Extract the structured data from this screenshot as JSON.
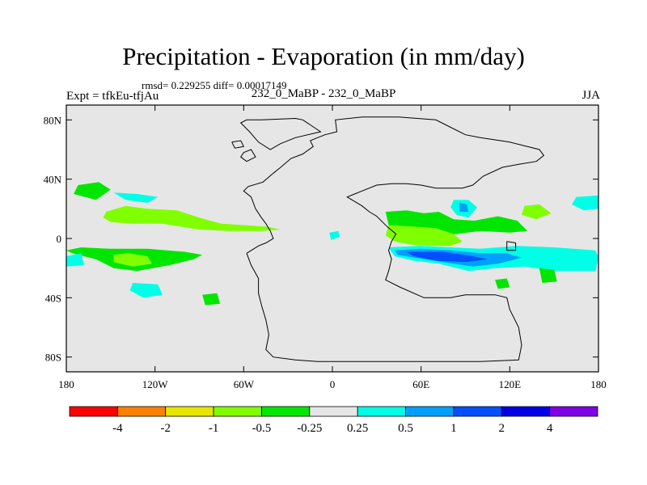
{
  "title": "Precipitation - Evaporation (in mm/day)",
  "stats": "rmsd= 0.229255 diff= 0.00017149",
  "left_label": "Expt = tfkEu-tfjAu",
  "center_label": "232_0_MaBP - 232_0_MaBP",
  "season": "JJA",
  "colors": {
    "background": "#e6e6e6",
    "outline": "#000000"
  },
  "chart_data": {
    "type": "heatmap",
    "projection": "cylindrical equidistant",
    "xlim": [
      -180,
      180
    ],
    "ylim": [
      -90,
      90
    ],
    "x_ticks": [
      {
        "value": -180,
        "label": "180"
      },
      {
        "value": -120,
        "label": "120W"
      },
      {
        "value": -60,
        "label": "60W"
      },
      {
        "value": 0,
        "label": "0"
      },
      {
        "value": 60,
        "label": "60E"
      },
      {
        "value": 120,
        "label": "120E"
      },
      {
        "value": 180,
        "label": "180"
      }
    ],
    "y_ticks": [
      {
        "value": 80,
        "label": "80N"
      },
      {
        "value": 40,
        "label": "40N"
      },
      {
        "value": 0,
        "label": "0"
      },
      {
        "value": -40,
        "label": "40S"
      },
      {
        "value": -80,
        "label": "80S"
      }
    ],
    "colorbar": {
      "colors": [
        "#ff0000",
        "#ff8000",
        "#e6e600",
        "#80ff00",
        "#00e600",
        "#e6e6e6",
        "#00ffe6",
        "#00a0ff",
        "#0050ff",
        "#0000e6",
        "#8000e6"
      ],
      "labels": [
        "-4",
        "-2",
        "-1",
        "-0.5",
        "-0.25",
        "0.25",
        "0.5",
        "1",
        "2",
        "4"
      ]
    },
    "regions": [
      {
        "level": "-0.5",
        "color": "#80ff00",
        "points": [
          [
            -153,
            18
          ],
          [
            -140,
            22
          ],
          [
            -125,
            20
          ],
          [
            -105,
            19
          ],
          [
            -90,
            14
          ],
          [
            -75,
            10
          ],
          [
            -60,
            9
          ],
          [
            -45,
            8
          ],
          [
            -35,
            6
          ],
          [
            -48,
            5
          ],
          [
            -70,
            5
          ],
          [
            -90,
            6
          ],
          [
            -115,
            10
          ],
          [
            -135,
            10
          ],
          [
            -150,
            11
          ],
          [
            -155,
            14
          ]
        ]
      },
      {
        "level": "-0.25",
        "color": "#00e600",
        "points": [
          [
            -172,
            36
          ],
          [
            -158,
            38
          ],
          [
            -150,
            33
          ],
          [
            -160,
            26
          ],
          [
            -175,
            30
          ]
        ]
      },
      {
        "level": "0.25",
        "color": "#00ffe6",
        "points": [
          [
            -148,
            31
          ],
          [
            -132,
            30
          ],
          [
            -118,
            28
          ],
          [
            -125,
            24
          ],
          [
            -140,
            26
          ]
        ]
      },
      {
        "level": "-0.25",
        "color": "#00e600",
        "points": [
          [
            -176,
            -10
          ],
          [
            -160,
            -14
          ],
          [
            -148,
            -20
          ],
          [
            -132,
            -22
          ],
          [
            -110,
            -18
          ],
          [
            -94,
            -14
          ],
          [
            -88,
            -11
          ],
          [
            -100,
            -9
          ],
          [
            -125,
            -7
          ],
          [
            -150,
            -7
          ],
          [
            -170,
            -6
          ],
          [
            -180,
            -8
          ]
        ]
      },
      {
        "level": "0.25",
        "color": "#00ffe6",
        "points": [
          [
            -180,
            -12
          ],
          [
            -170,
            -10
          ],
          [
            -168,
            -18
          ],
          [
            -180,
            -19
          ]
        ]
      },
      {
        "level": "-0.5",
        "color": "#80ff00",
        "points": [
          [
            -148,
            -11
          ],
          [
            -138,
            -10
          ],
          [
            -125,
            -12
          ],
          [
            -122,
            -17
          ],
          [
            -135,
            -19
          ],
          [
            -148,
            -16
          ]
        ]
      },
      {
        "level": "0.25",
        "color": "#00ffe6",
        "points": [
          [
            -135,
            -30
          ],
          [
            -118,
            -31
          ],
          [
            -115,
            -38
          ],
          [
            -128,
            -40
          ],
          [
            -137,
            -35
          ]
        ]
      },
      {
        "level": "-0.25",
        "color": "#00e600",
        "points": [
          [
            -88,
            -38
          ],
          [
            -78,
            -37
          ],
          [
            -76,
            -44
          ],
          [
            -86,
            -45
          ]
        ]
      },
      {
        "level": "0.25",
        "color": "#00ffe6",
        "points": [
          [
            -2,
            4
          ],
          [
            4,
            5
          ],
          [
            5,
            1
          ],
          [
            -1,
            -1
          ]
        ]
      },
      {
        "level": "-0.25",
        "color": "#00e600",
        "points": [
          [
            36,
            18
          ],
          [
            50,
            19
          ],
          [
            62,
            17
          ],
          [
            72,
            18
          ],
          [
            82,
            13
          ],
          [
            96,
            12
          ],
          [
            112,
            15
          ],
          [
            125,
            12
          ],
          [
            132,
            5
          ],
          [
            120,
            4
          ],
          [
            100,
            5
          ],
          [
            84,
            3
          ],
          [
            66,
            2
          ],
          [
            50,
            5
          ],
          [
            38,
            9
          ]
        ]
      },
      {
        "level": "-0.5",
        "color": "#80ff00",
        "points": [
          [
            38,
            9
          ],
          [
            55,
            8
          ],
          [
            70,
            7
          ],
          [
            82,
            3
          ],
          [
            88,
            -2
          ],
          [
            80,
            -5
          ],
          [
            65,
            -5
          ],
          [
            52,
            -4
          ],
          [
            42,
            -2
          ],
          [
            36,
            2
          ]
        ]
      },
      {
        "level": "0.25",
        "color": "#00ffe6",
        "points": [
          [
            38,
            -6
          ],
          [
            60,
            -5
          ],
          [
            80,
            -6
          ],
          [
            100,
            -7
          ],
          [
            125,
            -5
          ],
          [
            150,
            -6
          ],
          [
            178,
            -8
          ],
          [
            180,
            -13
          ],
          [
            178,
            -22
          ],
          [
            150,
            -22
          ],
          [
            130,
            -19
          ],
          [
            110,
            -20
          ],
          [
            92,
            -22
          ],
          [
            72,
            -17
          ],
          [
            55,
            -15
          ],
          [
            42,
            -12
          ]
        ]
      },
      {
        "level": "0.5",
        "color": "#00a0ff",
        "points": [
          [
            42,
            -8
          ],
          [
            60,
            -7
          ],
          [
            80,
            -8
          ],
          [
            100,
            -10
          ],
          [
            118,
            -10
          ],
          [
            128,
            -13
          ],
          [
            112,
            -17
          ],
          [
            95,
            -19
          ],
          [
            75,
            -16
          ],
          [
            56,
            -13
          ],
          [
            44,
            -11
          ]
        ]
      },
      {
        "level": "1",
        "color": "#0050ff",
        "points": [
          [
            50,
            -9
          ],
          [
            75,
            -9
          ],
          [
            95,
            -12
          ],
          [
            105,
            -14
          ],
          [
            90,
            -16
          ],
          [
            70,
            -15
          ],
          [
            55,
            -12
          ]
        ]
      },
      {
        "level": "0.25",
        "color": "#00ffe6",
        "points": [
          [
            82,
            26
          ],
          [
            92,
            26
          ],
          [
            98,
            21
          ],
          [
            92,
            14
          ],
          [
            84,
            16
          ],
          [
            80,
            21
          ]
        ]
      },
      {
        "level": "0.5",
        "color": "#00a0ff",
        "points": [
          [
            86,
            24
          ],
          [
            91,
            23
          ],
          [
            92,
            18
          ],
          [
            86,
            18
          ]
        ]
      },
      {
        "level": "-0.5",
        "color": "#80ff00",
        "points": [
          [
            130,
            22
          ],
          [
            140,
            23
          ],
          [
            148,
            17
          ],
          [
            138,
            13
          ],
          [
            128,
            16
          ]
        ]
      },
      {
        "level": "0.25",
        "color": "#00ffe6",
        "points": [
          [
            165,
            28
          ],
          [
            180,
            29
          ],
          [
            180,
            20
          ],
          [
            170,
            19
          ],
          [
            162,
            23
          ]
        ]
      },
      {
        "level": "-0.25",
        "color": "#00e600",
        "points": [
          [
            140,
            -20
          ],
          [
            150,
            -21
          ],
          [
            152,
            -29
          ],
          [
            142,
            -30
          ]
        ]
      },
      {
        "level": "-0.25",
        "color": "#00e600",
        "points": [
          [
            110,
            -28
          ],
          [
            118,
            -27
          ],
          [
            120,
            -33
          ],
          [
            112,
            -34
          ]
        ]
      }
    ],
    "landmass_outline": [
      [
        -48,
        80
      ],
      [
        -25,
        81
      ],
      [
        -20,
        80
      ],
      [
        -8,
        72
      ],
      [
        -25,
        68
      ],
      [
        -35,
        64
      ],
      [
        -42,
        60
      ],
      [
        -50,
        65
      ],
      [
        -56,
        72
      ],
      [
        -62,
        78
      ],
      [
        -58,
        80
      ],
      [
        -48,
        80
      ]
    ],
    "continent_outline": [
      [
        -58,
        -10
      ],
      [
        -50,
        -5
      ],
      [
        -45,
        -3
      ],
      [
        -40,
        0
      ],
      [
        -42,
        5
      ],
      [
        -45,
        10
      ],
      [
        -48,
        14
      ],
      [
        -52,
        20
      ],
      [
        -55,
        28
      ],
      [
        -60,
        32
      ],
      [
        -57,
        35
      ],
      [
        -47,
        38
      ],
      [
        -40,
        44
      ],
      [
        -35,
        48
      ],
      [
        -28,
        54
      ],
      [
        -20,
        57
      ],
      [
        -13,
        62
      ],
      [
        -15,
        66
      ],
      [
        -10,
        68
      ],
      [
        -5,
        70
      ],
      [
        3,
        72
      ],
      [
        2,
        80
      ],
      [
        20,
        82
      ],
      [
        45,
        82
      ],
      [
        70,
        80
      ],
      [
        80,
        75
      ],
      [
        90,
        70
      ],
      [
        100,
        68
      ],
      [
        120,
        65
      ],
      [
        140,
        60
      ],
      [
        143,
        56
      ],
      [
        138,
        52
      ],
      [
        126,
        50
      ],
      [
        115,
        48
      ],
      [
        102,
        42
      ],
      [
        95,
        36
      ],
      [
        88,
        34
      ],
      [
        70,
        34
      ],
      [
        60,
        36
      ],
      [
        50,
        37
      ],
      [
        40,
        37
      ],
      [
        30,
        36
      ],
      [
        20,
        32
      ],
      [
        15,
        30
      ],
      [
        10,
        28
      ],
      [
        15,
        25
      ],
      [
        20,
        22
      ],
      [
        25,
        18
      ],
      [
        30,
        15
      ],
      [
        37,
        8
      ],
      [
        43,
        3
      ],
      [
        40,
        -2
      ],
      [
        38,
        -8
      ],
      [
        40,
        -14
      ],
      [
        38,
        -22
      ],
      [
        36,
        -28
      ],
      [
        46,
        -33
      ],
      [
        62,
        -40
      ],
      [
        80,
        -40
      ],
      [
        90,
        -38
      ],
      [
        110,
        -38
      ],
      [
        118,
        -40
      ],
      [
        120,
        -48
      ],
      [
        126,
        -60
      ],
      [
        128,
        -72
      ],
      [
        126,
        -82
      ],
      [
        100,
        -83
      ],
      [
        70,
        -83
      ],
      [
        40,
        -83
      ],
      [
        10,
        -83
      ],
      [
        -10,
        -83
      ],
      [
        -25,
        -82
      ],
      [
        -40,
        -80
      ],
      [
        -45,
        -75
      ],
      [
        -43,
        -65
      ],
      [
        -45,
        -55
      ],
      [
        -48,
        -45
      ],
      [
        -50,
        -37
      ],
      [
        -50,
        -27
      ],
      [
        -55,
        -18
      ],
      [
        -58,
        -10
      ]
    ],
    "island_outlines": [
      [
        [
          118,
          -2
        ],
        [
          124,
          -3
        ],
        [
          124,
          -8
        ],
        [
          118,
          -8
        ],
        [
          118,
          -2
        ]
      ],
      [
        [
          -60,
          58
        ],
        [
          -55,
          60
        ],
        [
          -52,
          55
        ],
        [
          -58,
          52
        ],
        [
          -62,
          55
        ],
        [
          -60,
          58
        ]
      ],
      [
        [
          -68,
          65
        ],
        [
          -62,
          66
        ],
        [
          -60,
          62
        ],
        [
          -66,
          61
        ],
        [
          -68,
          65
        ]
      ]
    ]
  }
}
